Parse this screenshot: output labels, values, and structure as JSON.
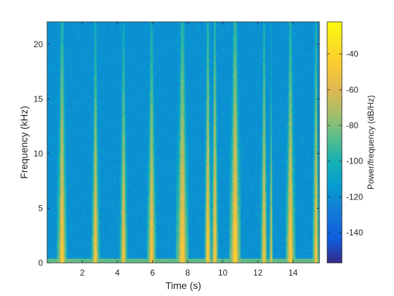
{
  "chart_data": {
    "type": "heatmap",
    "title": "",
    "xlabel": "Time (s)",
    "ylabel": "Frequency (kHz)",
    "xlim": [
      0,
      15.5
    ],
    "ylim": [
      0,
      22.05
    ],
    "xticks": [
      2,
      4,
      6,
      8,
      10,
      12,
      14
    ],
    "yticks": [
      0,
      5,
      10,
      15,
      20
    ],
    "colormap": "parula",
    "colorbar": {
      "label": "Power/frequency (dB/Hz)",
      "range": [
        -157,
        -22
      ],
      "ticks": [
        -140,
        -120,
        -100,
        -80,
        -60,
        -40
      ]
    },
    "background_level_db": -118,
    "low_frequency_band": {
      "max_khz": 0.4,
      "level_db": -85
    },
    "events": [
      {
        "t": 0.85,
        "width_s": 0.35,
        "peak_db": -42,
        "reach_khz": 22.0
      },
      {
        "t": 2.75,
        "width_s": 0.3,
        "peak_db": -45,
        "reach_khz": 20.0
      },
      {
        "t": 4.35,
        "width_s": 0.3,
        "peak_db": -48,
        "reach_khz": 21.0
      },
      {
        "t": 5.95,
        "width_s": 0.35,
        "peak_db": -45,
        "reach_khz": 21.0
      },
      {
        "t": 7.7,
        "width_s": 0.45,
        "peak_db": -42,
        "reach_khz": 22.0
      },
      {
        "t": 9.15,
        "width_s": 0.25,
        "peak_db": -40,
        "reach_khz": 22.0
      },
      {
        "t": 9.55,
        "width_s": 0.25,
        "peak_db": -42,
        "reach_khz": 22.0
      },
      {
        "t": 10.7,
        "width_s": 0.4,
        "peak_db": -38,
        "reach_khz": 22.0
      },
      {
        "t": 12.35,
        "width_s": 0.25,
        "peak_db": -45,
        "reach_khz": 22.0
      },
      {
        "t": 12.75,
        "width_s": 0.15,
        "peak_db": -52,
        "reach_khz": 18.0
      },
      {
        "t": 13.85,
        "width_s": 0.35,
        "peak_db": -42,
        "reach_khz": 21.0
      },
      {
        "t": 15.3,
        "width_s": 0.25,
        "peak_db": -45,
        "reach_khz": 22.0
      }
    ]
  }
}
